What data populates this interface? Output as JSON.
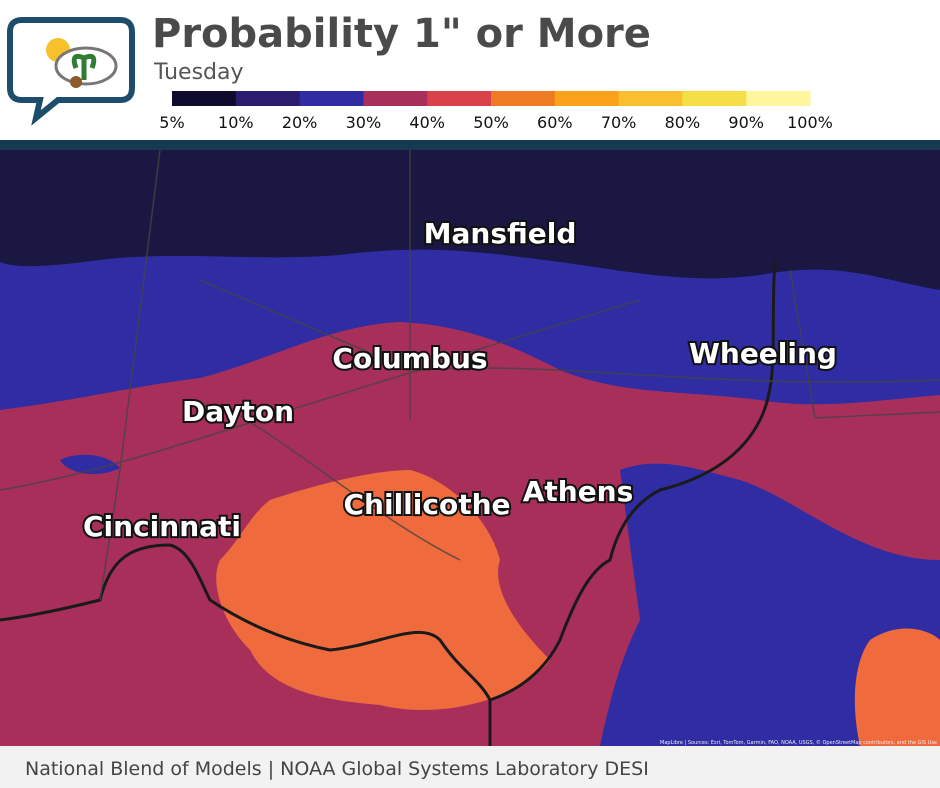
{
  "header": {
    "title": "Probability 1\" or More",
    "subtitle": "Tuesday"
  },
  "legend": {
    "colors": [
      "#0e0b2c",
      "#2b1c6e",
      "#2f2ca4",
      "#a92f5b",
      "#d8414a",
      "#ef7a24",
      "#f9a21a",
      "#f9bf2f",
      "#f4df47",
      "#fff59c"
    ],
    "labels": [
      "5%",
      "10%",
      "20%",
      "30%",
      "40%",
      "50%",
      "60%",
      "70%",
      "80%",
      "90%",
      "100%"
    ]
  },
  "cities": [
    "Mansfield",
    "Columbus",
    "Wheeling",
    "Dayton",
    "Chillicothe",
    "Athens",
    "Cincinnati"
  ],
  "attribution": "MapLibre | Sources: Esri, TomTom, Garmin, FAO, NOAA, USGS, © OpenStreetMap contributors, and the GIS Use",
  "footer": "National Blend of Models | NOAA Global Systems Laboratory DESI"
}
